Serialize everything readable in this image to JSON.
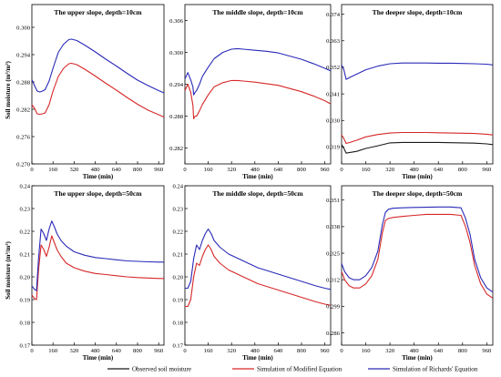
{
  "figure": {
    "ylabel_common": "Soil moisture (m³/m³)",
    "legend": [
      {
        "label": "Observed soil moisture",
        "color": "#1a1a1a"
      },
      {
        "label": "Simulation of Modified Equation",
        "color": "#d62728"
      },
      {
        "label": "Simulation of Richards' Equation",
        "color": "#2a2ab8"
      }
    ]
  },
  "chart_data": [
    {
      "type": "line",
      "title": "The upper slope, depth=10cm",
      "xlabel": "Time (min)",
      "ylabel": "Soil moisture (m³/m³)",
      "xlim": [
        0,
        1000
      ],
      "ylim": [
        0.27,
        0.305
      ],
      "xticks": [
        0,
        160,
        320,
        480,
        640,
        800,
        960
      ],
      "yticks": [
        0.27,
        0.276,
        0.282,
        0.288,
        0.294,
        0.3
      ],
      "ytick_labels": [
        "0.270",
        "0.276",
        "0.282",
        "0.288",
        "0.294",
        "0.300"
      ],
      "series": [
        {
          "name": "Simulation of Modified Equation",
          "color": "#d62728",
          "x": [
            0,
            20,
            40,
            60,
            80,
            100,
            130,
            160,
            200,
            240,
            280,
            300,
            340,
            400,
            480,
            560,
            640,
            720,
            800,
            880,
            960,
            1000
          ],
          "y": [
            0.283,
            0.2822,
            0.281,
            0.2809,
            0.281,
            0.2812,
            0.283,
            0.286,
            0.2892,
            0.291,
            0.292,
            0.2921,
            0.2918,
            0.2908,
            0.2893,
            0.2877,
            0.2862,
            0.2846,
            0.2831,
            0.2818,
            0.2808,
            0.2803
          ]
        },
        {
          "name": "Simulation of Richards' Equation",
          "color": "#2a2ab8",
          "x": [
            0,
            20,
            40,
            60,
            80,
            100,
            130,
            160,
            200,
            240,
            280,
            300,
            340,
            400,
            480,
            560,
            640,
            720,
            800,
            880,
            960,
            1000
          ],
          "y": [
            0.2885,
            0.2872,
            0.286,
            0.2858,
            0.286,
            0.2863,
            0.2882,
            0.291,
            0.2945,
            0.2963,
            0.2973,
            0.2974,
            0.2971,
            0.2961,
            0.2946,
            0.293,
            0.2915,
            0.2899,
            0.2884,
            0.2872,
            0.2861,
            0.2856
          ]
        }
      ]
    },
    {
      "type": "line",
      "title": "The middle slope, depth=10cm",
      "xlabel": "Time (min)",
      "ylabel": "",
      "xlim": [
        0,
        1000
      ],
      "ylim": [
        0.279,
        0.309
      ],
      "xticks": [
        0,
        160,
        320,
        480,
        640,
        800,
        960
      ],
      "yticks": [
        0.282,
        0.288,
        0.294,
        0.3,
        0.306
      ],
      "ytick_labels": [
        "0.282",
        "0.288",
        "0.294",
        "0.300",
        "0.306"
      ],
      "series": [
        {
          "name": "Simulation of Modified Equation",
          "color": "#d62728",
          "x": [
            0,
            20,
            40,
            55,
            60,
            70,
            80,
            100,
            120,
            160,
            200,
            260,
            320,
            360,
            400,
            480,
            560,
            640,
            720,
            800,
            880,
            960,
            1000
          ],
          "y": [
            0.2928,
            0.294,
            0.2925,
            0.29,
            0.2875,
            0.288,
            0.288,
            0.289,
            0.2902,
            0.292,
            0.2935,
            0.2943,
            0.2947,
            0.2947,
            0.2946,
            0.2944,
            0.2941,
            0.2938,
            0.2932,
            0.2926,
            0.2918,
            0.2909,
            0.2903
          ]
        },
        {
          "name": "Simulation of Richards' Equation",
          "color": "#2a2ab8",
          "x": [
            0,
            20,
            40,
            55,
            60,
            70,
            80,
            100,
            120,
            160,
            200,
            260,
            320,
            360,
            400,
            480,
            560,
            640,
            720,
            800,
            880,
            960,
            1000
          ],
          "y": [
            0.295,
            0.2962,
            0.2948,
            0.2935,
            0.292,
            0.2925,
            0.2928,
            0.294,
            0.2955,
            0.2972,
            0.2988,
            0.3,
            0.3006,
            0.3007,
            0.3006,
            0.3004,
            0.3002,
            0.2999,
            0.2993,
            0.2987,
            0.2979,
            0.297,
            0.2965
          ]
        }
      ]
    },
    {
      "type": "line",
      "title": "The deeper slope, depth=10cm",
      "xlabel": "Time (min)",
      "ylabel": "",
      "xlim": [
        0,
        1000
      ],
      "ylim": [
        0.312,
        0.378
      ],
      "xticks": [
        0,
        160,
        320,
        480,
        640,
        800,
        960
      ],
      "yticks": [
        0.319,
        0.33,
        0.341,
        0.352,
        0.363,
        0.374
      ],
      "ytick_labels": [
        "0.319",
        "0.330",
        "0.341",
        "0.352",
        "0.363",
        "0.374"
      ],
      "series": [
        {
          "name": "Observed soil moisture",
          "color": "#1a1a1a",
          "x": [
            0,
            15,
            30,
            60,
            100,
            160,
            240,
            320,
            400,
            480,
            560,
            640,
            720,
            800,
            880,
            960,
            1000
          ],
          "y": [
            0.32,
            0.3185,
            0.3165,
            0.3168,
            0.3172,
            0.3184,
            0.3195,
            0.3207,
            0.3209,
            0.3209,
            0.3209,
            0.3209,
            0.3208,
            0.3207,
            0.3206,
            0.3203,
            0.32
          ]
        },
        {
          "name": "Simulation of Modified Equation",
          "color": "#d62728",
          "x": [
            0,
            15,
            30,
            60,
            100,
            160,
            240,
            320,
            400,
            480,
            560,
            640,
            720,
            800,
            880,
            960,
            1000
          ],
          "y": [
            0.324,
            0.3225,
            0.3205,
            0.321,
            0.3218,
            0.3232,
            0.3242,
            0.3248,
            0.325,
            0.325,
            0.325,
            0.3249,
            0.3248,
            0.3247,
            0.3246,
            0.3243,
            0.324
          ]
        },
        {
          "name": "Simulation of Richards' Equation",
          "color": "#2a2ab8",
          "x": [
            0,
            15,
            30,
            60,
            100,
            160,
            240,
            320,
            400,
            480,
            560,
            640,
            720,
            800,
            880,
            960,
            1000
          ],
          "y": [
            0.353,
            0.351,
            0.347,
            0.348,
            0.3492,
            0.351,
            0.3525,
            0.3535,
            0.3538,
            0.3538,
            0.3538,
            0.3537,
            0.3537,
            0.3536,
            0.3535,
            0.3533,
            0.353
          ]
        }
      ]
    },
    {
      "type": "line",
      "title": "The upper slope, depth=50cm",
      "xlabel": "Time (min)",
      "ylabel": "Soil moisture (m³/m³)",
      "xlim": [
        0,
        1000
      ],
      "ylim": [
        0.17,
        0.24
      ],
      "xticks": [
        0,
        160,
        320,
        480,
        640,
        800,
        960
      ],
      "yticks": [
        0.17,
        0.18,
        0.19,
        0.2,
        0.21,
        0.22,
        0.23,
        0.24
      ],
      "ytick_labels": [
        "0.17",
        "0.18",
        "0.19",
        "0.20",
        "0.21",
        "0.22",
        "0.23",
        "0.24"
      ],
      "series": [
        {
          "name": "Simulation of Modified Equation",
          "color": "#d62728",
          "x": [
            0,
            20,
            35,
            50,
            70,
            90,
            110,
            130,
            150,
            170,
            190,
            220,
            260,
            320,
            400,
            480,
            560,
            640,
            720,
            800,
            880,
            960,
            1000
          ],
          "y": [
            0.192,
            0.1905,
            0.19,
            0.203,
            0.214,
            0.212,
            0.209,
            0.213,
            0.218,
            0.215,
            0.212,
            0.209,
            0.206,
            0.204,
            0.2025,
            0.2015,
            0.201,
            0.2005,
            0.2,
            0.1997,
            0.1995,
            0.1993,
            0.1993
          ]
        },
        {
          "name": "Simulation of Richards' Equation",
          "color": "#2a2ab8",
          "x": [
            0,
            20,
            35,
            50,
            70,
            90,
            110,
            130,
            150,
            170,
            190,
            220,
            260,
            320,
            400,
            480,
            560,
            640,
            720,
            800,
            880,
            960,
            1000
          ],
          "y": [
            0.196,
            0.1945,
            0.194,
            0.208,
            0.221,
            0.219,
            0.216,
            0.221,
            0.2245,
            0.222,
            0.219,
            0.216,
            0.2135,
            0.211,
            0.2095,
            0.2085,
            0.208,
            0.2075,
            0.207,
            0.2068,
            0.2066,
            0.2065,
            0.2065
          ]
        }
      ]
    },
    {
      "type": "line",
      "title": "The middle slope, depth=50cm",
      "xlabel": "Time (min)",
      "ylabel": "",
      "xlim": [
        0,
        1000
      ],
      "ylim": [
        0.17,
        0.24
      ],
      "xticks": [
        0,
        160,
        320,
        480,
        640,
        800,
        960
      ],
      "yticks": [
        0.17,
        0.18,
        0.19,
        0.2,
        0.21,
        0.22,
        0.23,
        0.24
      ],
      "ytick_labels": [
        "0.17",
        "0.18",
        "0.19",
        "0.20",
        "0.21",
        "0.22",
        "0.23",
        "0.24"
      ],
      "series": [
        {
          "name": "Simulation of Modified Equation",
          "color": "#d62728",
          "x": [
            0,
            20,
            40,
            60,
            80,
            100,
            120,
            140,
            160,
            180,
            200,
            240,
            300,
            400,
            500,
            600,
            700,
            800,
            900,
            960,
            1000
          ],
          "y": [
            0.187,
            0.187,
            0.19,
            0.2,
            0.206,
            0.205,
            0.209,
            0.212,
            0.214,
            0.212,
            0.209,
            0.206,
            0.203,
            0.2,
            0.197,
            0.195,
            0.193,
            0.191,
            0.189,
            0.188,
            0.1875
          ]
        },
        {
          "name": "Simulation of Richards' Equation",
          "color": "#2a2ab8",
          "x": [
            0,
            20,
            40,
            60,
            80,
            100,
            120,
            140,
            160,
            180,
            200,
            240,
            300,
            400,
            500,
            600,
            700,
            800,
            900,
            960,
            1000
          ],
          "y": [
            0.195,
            0.195,
            0.198,
            0.208,
            0.214,
            0.212,
            0.216,
            0.219,
            0.221,
            0.219,
            0.216,
            0.213,
            0.21,
            0.207,
            0.204,
            0.202,
            0.2,
            0.198,
            0.196,
            0.195,
            0.1945
          ]
        }
      ]
    },
    {
      "type": "line",
      "title": "The deeper slope, depth=50cm",
      "xlabel": "Time (min)",
      "ylabel": "",
      "xlim": [
        0,
        1000
      ],
      "ylim": [
        0.28,
        0.358
      ],
      "xticks": [
        0,
        160,
        320,
        480,
        640,
        800,
        960
      ],
      "yticks": [
        0.286,
        0.299,
        0.312,
        0.325,
        0.338,
        0.351
      ],
      "ytick_labels": [
        "0.286",
        "0.299",
        "0.312",
        "0.325",
        "0.338",
        "0.351"
      ],
      "series": [
        {
          "name": "Simulation of Modified Equation",
          "color": "#d62728",
          "x": [
            0,
            20,
            50,
            80,
            120,
            160,
            200,
            240,
            270,
            290,
            310,
            340,
            400,
            480,
            560,
            640,
            720,
            790,
            820,
            850,
            880,
            920,
            960,
            1000
          ],
          "y": [
            0.316,
            0.312,
            0.309,
            0.308,
            0.308,
            0.31,
            0.314,
            0.322,
            0.335,
            0.341,
            0.342,
            0.3425,
            0.343,
            0.3435,
            0.344,
            0.344,
            0.344,
            0.3435,
            0.338,
            0.33,
            0.319,
            0.31,
            0.305,
            0.303
          ]
        },
        {
          "name": "Simulation of Richards' Equation",
          "color": "#2a2ab8",
          "x": [
            0,
            20,
            50,
            80,
            120,
            160,
            200,
            240,
            270,
            290,
            310,
            340,
            400,
            480,
            560,
            640,
            720,
            790,
            820,
            850,
            880,
            920,
            960,
            1000
          ],
          "y": [
            0.32,
            0.316,
            0.313,
            0.312,
            0.312,
            0.314,
            0.318,
            0.326,
            0.339,
            0.345,
            0.3465,
            0.347,
            0.3472,
            0.3474,
            0.3475,
            0.3476,
            0.3476,
            0.3472,
            0.342,
            0.334,
            0.322,
            0.313,
            0.308,
            0.306
          ]
        }
      ]
    }
  ]
}
